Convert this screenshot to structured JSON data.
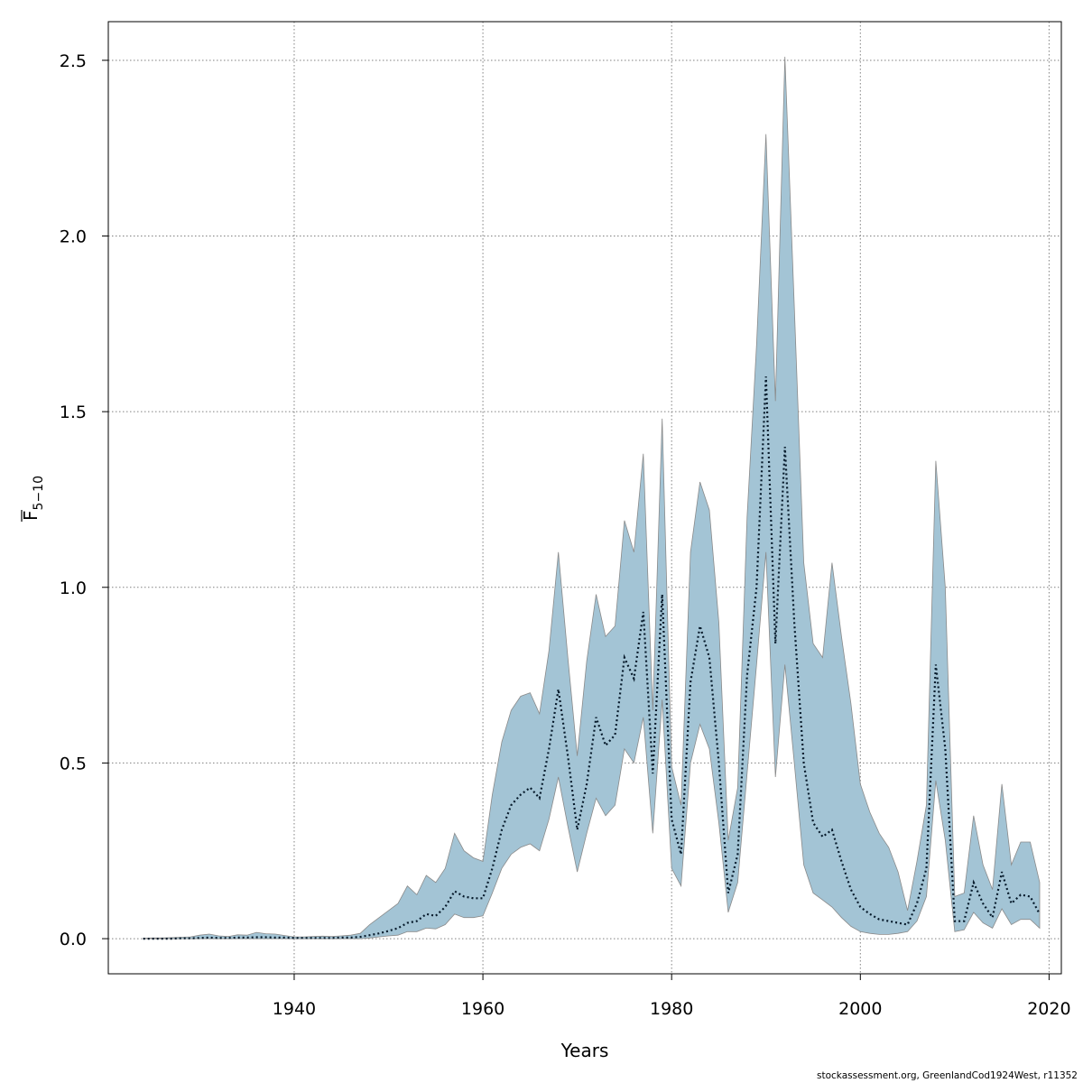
{
  "chart_data": {
    "type": "area",
    "xlabel": "Years",
    "ylabel": {
      "main": "F",
      "subscript": "5−10"
    },
    "xlim": [
      1920.3,
      2021.3
    ],
    "ylim": [
      -0.1,
      2.61
    ],
    "x_ticks": [
      1940,
      1960,
      1980,
      2000,
      2020
    ],
    "y_ticks": [
      "0.0",
      "0.5",
      "1.0",
      "1.5",
      "2.0",
      "2.5"
    ],
    "grid": true,
    "colors": {
      "band_fill": "#a3c4d5",
      "band_stroke": "#8a8a8a",
      "line": "#061a2b",
      "grid": "#808080"
    },
    "series": [
      {
        "role": "estimate",
        "style": "dotted",
        "x": [
          1924,
          1925,
          1926,
          1927,
          1928,
          1929,
          1930,
          1931,
          1932,
          1933,
          1934,
          1935,
          1936,
          1937,
          1938,
          1939,
          1940,
          1941,
          1942,
          1943,
          1944,
          1945,
          1946,
          1947,
          1948,
          1949,
          1950,
          1951,
          1952,
          1953,
          1954,
          1955,
          1956,
          1957,
          1958,
          1959,
          1960,
          1961,
          1962,
          1963,
          1964,
          1965,
          1966,
          1967,
          1968,
          1969,
          1970,
          1971,
          1972,
          1973,
          1974,
          1975,
          1976,
          1977,
          1978,
          1979,
          1980,
          1981,
          1982,
          1983,
          1984,
          1985,
          1986,
          1987,
          1988,
          1989,
          1990,
          1991,
          1992,
          1993,
          1994,
          1995,
          1996,
          1997,
          1998,
          1999,
          2000,
          2001,
          2002,
          2003,
          2004,
          2005,
          2006,
          2007,
          2008,
          2009,
          2010,
          2011,
          2012,
          2013,
          2014,
          2015,
          2016,
          2017,
          2018,
          2019
        ],
        "y": [
          0.0,
          0.0,
          0.0,
          0.0,
          0.001,
          0.001,
          0.002,
          0.003,
          0.002,
          0.002,
          0.003,
          0.003,
          0.004,
          0.004,
          0.003,
          0.003,
          0.002,
          0.002,
          0.002,
          0.002,
          0.002,
          0.003,
          0.003,
          0.005,
          0.01,
          0.015,
          0.022,
          0.03,
          0.045,
          0.05,
          0.07,
          0.065,
          0.09,
          0.135,
          0.12,
          0.115,
          0.115,
          0.2,
          0.31,
          0.38,
          0.41,
          0.43,
          0.4,
          0.54,
          0.71,
          0.52,
          0.31,
          0.44,
          0.63,
          0.55,
          0.58,
          0.8,
          0.74,
          0.93,
          0.47,
          0.98,
          0.34,
          0.24,
          0.73,
          0.89,
          0.8,
          0.5,
          0.13,
          0.24,
          0.75,
          1.0,
          1.6,
          0.84,
          1.4,
          0.9,
          0.5,
          0.33,
          0.29,
          0.31,
          0.22,
          0.14,
          0.09,
          0.07,
          0.055,
          0.05,
          0.045,
          0.04,
          0.1,
          0.2,
          0.78,
          0.54,
          0.05,
          0.05,
          0.16,
          0.1,
          0.06,
          0.19,
          0.1,
          0.125,
          0.12,
          0.07
        ]
      },
      {
        "role": "upper",
        "x": [
          1924,
          1925,
          1926,
          1927,
          1928,
          1929,
          1930,
          1931,
          1932,
          1933,
          1934,
          1935,
          1936,
          1937,
          1938,
          1939,
          1940,
          1941,
          1942,
          1943,
          1944,
          1945,
          1946,
          1947,
          1948,
          1949,
          1950,
          1951,
          1952,
          1953,
          1954,
          1955,
          1956,
          1957,
          1958,
          1959,
          1960,
          1961,
          1962,
          1963,
          1964,
          1965,
          1966,
          1967,
          1968,
          1969,
          1970,
          1971,
          1972,
          1973,
          1974,
          1975,
          1976,
          1977,
          1978,
          1979,
          1980,
          1981,
          1982,
          1983,
          1984,
          1985,
          1986,
          1987,
          1988,
          1989,
          1990,
          1991,
          1992,
          1993,
          1994,
          1995,
          1996,
          1997,
          1998,
          1999,
          2000,
          2001,
          2002,
          2003,
          2004,
          2005,
          2006,
          2007,
          2008,
          2009,
          2010,
          2011,
          2012,
          2013,
          2014,
          2015,
          2016,
          2017,
          2018,
          2019
        ],
        "y": [
          0.001,
          0.002,
          0.002,
          0.003,
          0.004,
          0.005,
          0.01,
          0.013,
          0.008,
          0.006,
          0.011,
          0.01,
          0.018,
          0.014,
          0.013,
          0.009,
          0.005,
          0.005,
          0.006,
          0.007,
          0.006,
          0.008,
          0.01,
          0.015,
          0.04,
          0.06,
          0.08,
          0.1,
          0.15,
          0.125,
          0.18,
          0.16,
          0.2,
          0.3,
          0.25,
          0.23,
          0.22,
          0.41,
          0.56,
          0.65,
          0.69,
          0.7,
          0.64,
          0.82,
          1.1,
          0.8,
          0.52,
          0.79,
          0.98,
          0.86,
          0.89,
          1.19,
          1.1,
          1.38,
          0.65,
          1.48,
          0.49,
          0.38,
          1.1,
          1.3,
          1.22,
          0.9,
          0.28,
          0.43,
          1.2,
          1.69,
          2.29,
          1.53,
          2.51,
          1.8,
          1.07,
          0.84,
          0.8,
          1.07,
          0.86,
          0.67,
          0.44,
          0.36,
          0.3,
          0.26,
          0.19,
          0.08,
          0.22,
          0.38,
          1.36,
          1.0,
          0.12,
          0.13,
          0.35,
          0.21,
          0.14,
          0.44,
          0.21,
          0.275,
          0.275,
          0.16
        ]
      },
      {
        "role": "lower",
        "x": [
          1924,
          1925,
          1926,
          1927,
          1928,
          1929,
          1930,
          1931,
          1932,
          1933,
          1934,
          1935,
          1936,
          1937,
          1938,
          1939,
          1940,
          1941,
          1942,
          1943,
          1944,
          1945,
          1946,
          1947,
          1948,
          1949,
          1950,
          1951,
          1952,
          1953,
          1954,
          1955,
          1956,
          1957,
          1958,
          1959,
          1960,
          1961,
          1962,
          1963,
          1964,
          1965,
          1966,
          1967,
          1968,
          1969,
          1970,
          1971,
          1972,
          1973,
          1974,
          1975,
          1976,
          1977,
          1978,
          1979,
          1980,
          1981,
          1982,
          1983,
          1984,
          1985,
          1986,
          1987,
          1988,
          1989,
          1990,
          1991,
          1992,
          1993,
          1994,
          1995,
          1996,
          1997,
          1998,
          1999,
          2000,
          2001,
          2002,
          2003,
          2004,
          2005,
          2006,
          2007,
          2008,
          2009,
          2010,
          2011,
          2012,
          2013,
          2014,
          2015,
          2016,
          2017,
          2018,
          2019
        ],
        "y": [
          0.0,
          0.0,
          0.0,
          0.0,
          0.0,
          0.0,
          0.0,
          0.0,
          0.0,
          0.0,
          0.0,
          0.0,
          0.0,
          0.0,
          0.0,
          0.0,
          0.0,
          0.0,
          0.0,
          0.0,
          0.0,
          0.0,
          0.0,
          0.0,
          0.002,
          0.005,
          0.008,
          0.01,
          0.02,
          0.02,
          0.03,
          0.028,
          0.04,
          0.07,
          0.06,
          0.06,
          0.065,
          0.13,
          0.2,
          0.24,
          0.26,
          0.27,
          0.25,
          0.34,
          0.46,
          0.32,
          0.19,
          0.3,
          0.4,
          0.35,
          0.38,
          0.54,
          0.5,
          0.63,
          0.3,
          0.68,
          0.2,
          0.15,
          0.5,
          0.61,
          0.54,
          0.33,
          0.075,
          0.16,
          0.47,
          0.78,
          1.1,
          0.46,
          0.78,
          0.5,
          0.21,
          0.13,
          0.11,
          0.09,
          0.06,
          0.035,
          0.02,
          0.015,
          0.012,
          0.012,
          0.015,
          0.02,
          0.05,
          0.12,
          0.45,
          0.28,
          0.02,
          0.025,
          0.075,
          0.045,
          0.03,
          0.085,
          0.04,
          0.055,
          0.055,
          0.03
        ]
      }
    ]
  },
  "footer_text": "stockassessment.org, GreenlandCod1924West, r11352"
}
